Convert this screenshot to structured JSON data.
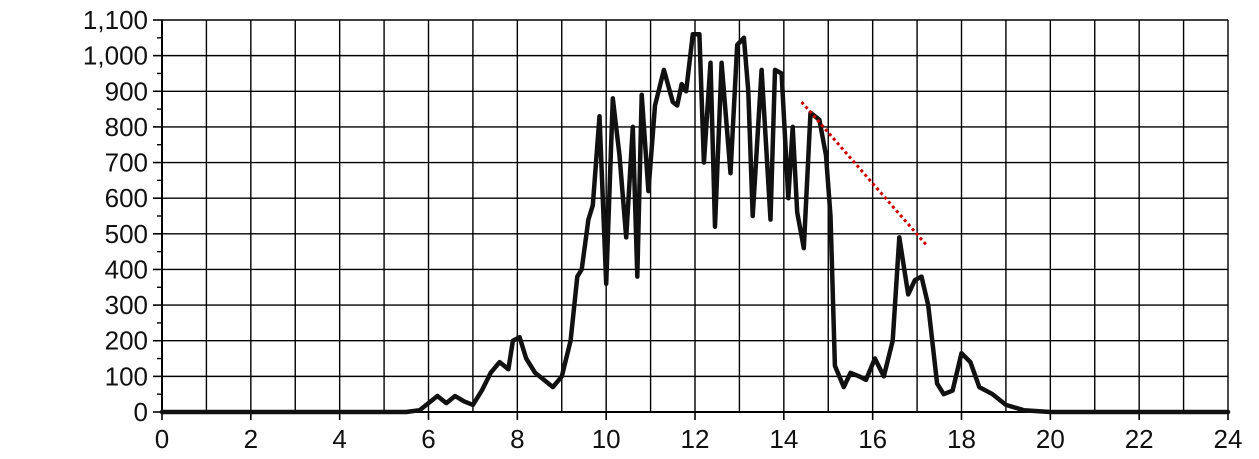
{
  "chart_data": {
    "type": "line",
    "title": "",
    "xlabel": "",
    "ylabel": "",
    "xlim": [
      0,
      24
    ],
    "ylim": [
      0,
      1100
    ],
    "x_ticks": [
      0,
      2,
      4,
      6,
      8,
      10,
      12,
      14,
      16,
      18,
      20,
      22,
      24
    ],
    "x_tick_labels": [
      "0",
      "2",
      "4",
      "6",
      "8",
      "10",
      "12",
      "14",
      "16",
      "18",
      "20",
      "22",
      "24"
    ],
    "y_ticks": [
      0,
      100,
      200,
      300,
      400,
      500,
      600,
      700,
      800,
      900,
      1000,
      1100
    ],
    "y_tick_labels": [
      "0",
      "100",
      "200",
      "300",
      "400",
      "500",
      "600",
      "700",
      "800",
      "900",
      "1,000",
      "1,100"
    ],
    "x_grid_step": 1,
    "grid": true,
    "legend": "none",
    "series": [
      {
        "color": "#111111",
        "x": [
          0,
          5.5,
          5.8,
          6.0,
          6.2,
          6.4,
          6.6,
          6.8,
          7.0,
          7.2,
          7.4,
          7.6,
          7.8,
          7.9,
          8.05,
          8.2,
          8.4,
          8.6,
          8.8,
          9.0,
          9.2,
          9.35,
          9.45,
          9.6,
          9.7,
          9.85,
          10.0,
          10.15,
          10.3,
          10.45,
          10.6,
          10.7,
          10.8,
          10.95,
          11.1,
          11.3,
          11.5,
          11.6,
          11.7,
          11.8,
          11.95,
          12.1,
          12.2,
          12.35,
          12.45,
          12.6,
          12.8,
          12.95,
          13.1,
          13.2,
          13.3,
          13.5,
          13.7,
          13.8,
          13.95,
          14.1,
          14.2,
          14.3,
          14.45,
          14.6,
          14.8,
          14.95,
          15.05,
          15.15,
          15.35,
          15.5,
          15.7,
          15.85,
          16.05,
          16.25,
          16.45,
          16.6,
          16.8,
          16.95,
          17.1,
          17.25,
          17.45,
          17.6,
          17.8,
          18.0,
          18.2,
          18.4,
          18.7,
          19.0,
          19.4,
          20.0,
          24
        ],
        "y": [
          0,
          0,
          5,
          25,
          45,
          25,
          45,
          30,
          20,
          60,
          110,
          140,
          120,
          200,
          210,
          150,
          110,
          90,
          70,
          100,
          200,
          380,
          400,
          540,
          580,
          830,
          360,
          880,
          720,
          490,
          800,
          380,
          890,
          620,
          860,
          960,
          870,
          860,
          920,
          900,
          1060,
          1060,
          700,
          980,
          520,
          980,
          670,
          1030,
          1050,
          900,
          550,
          960,
          540,
          960,
          950,
          600,
          800,
          560,
          460,
          840,
          820,
          720,
          550,
          130,
          70,
          110,
          100,
          90,
          150,
          100,
          200,
          490,
          330,
          370,
          380,
          300,
          80,
          50,
          60,
          165,
          140,
          70,
          50,
          20,
          5,
          0,
          0
        ]
      }
    ],
    "annotations": [
      {
        "type": "dotted-line",
        "color": "#cc0000",
        "x": [
          14.4,
          17.2
        ],
        "y": [
          870,
          470
        ]
      }
    ]
  }
}
